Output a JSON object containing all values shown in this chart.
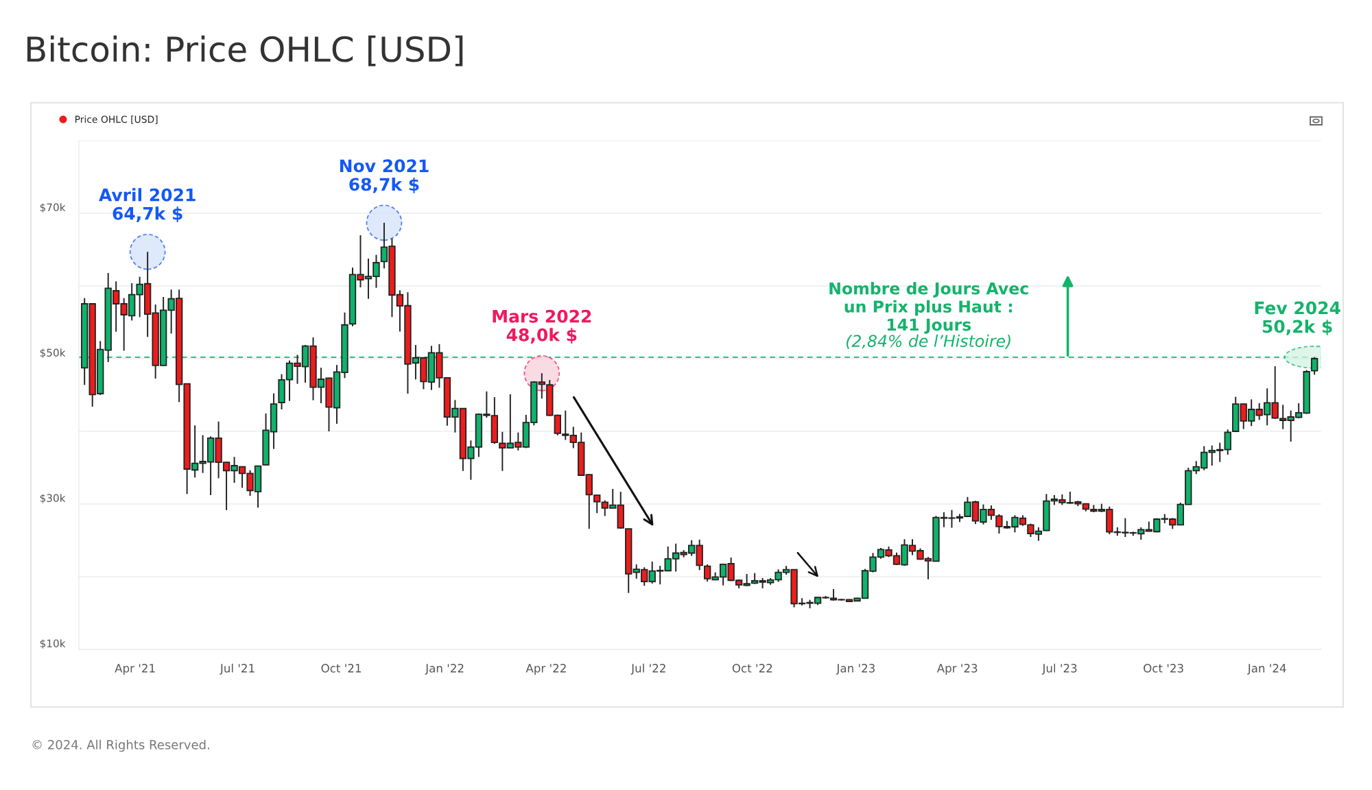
{
  "chart_data": {
    "type": "candlestick",
    "title": "Bitcoin: Price OHLC [USD]",
    "x": [
      "2021-02-15",
      "2021-02-22",
      "2021-03-01",
      "2021-03-08",
      "2021-03-15",
      "2021-03-22",
      "2021-03-29",
      "2021-04-05",
      "2021-04-12",
      "2021-04-19",
      "2021-04-26",
      "2021-05-03",
      "2021-05-10",
      "2021-05-17",
      "2021-05-24",
      "2021-05-31",
      "2021-06-07",
      "2021-06-14",
      "2021-06-21",
      "2021-06-28",
      "2021-07-05",
      "2021-07-12",
      "2021-07-19",
      "2021-07-26",
      "2021-08-02",
      "2021-08-09",
      "2021-08-16",
      "2021-08-23",
      "2021-08-30",
      "2021-09-06",
      "2021-09-13",
      "2021-09-20",
      "2021-09-27",
      "2021-10-04",
      "2021-10-11",
      "2021-10-18",
      "2021-10-25",
      "2021-11-01",
      "2021-11-08",
      "2021-11-15",
      "2021-11-22",
      "2021-11-29",
      "2021-12-06",
      "2021-12-13",
      "2021-12-20",
      "2021-12-27",
      "2022-01-03",
      "2022-01-10",
      "2022-01-17",
      "2022-01-24",
      "2022-01-31",
      "2022-02-07",
      "2022-02-14",
      "2022-02-21",
      "2022-02-28",
      "2022-03-07",
      "2022-03-14",
      "2022-03-21",
      "2022-03-28",
      "2022-04-04",
      "2022-04-11",
      "2022-04-18",
      "2022-04-25",
      "2022-05-02",
      "2022-05-09",
      "2022-05-16",
      "2022-05-23",
      "2022-05-30",
      "2022-06-06",
      "2022-06-13",
      "2022-06-20",
      "2022-06-27",
      "2022-07-04",
      "2022-07-11",
      "2022-07-18",
      "2022-07-25",
      "2022-08-01",
      "2022-08-08",
      "2022-08-15",
      "2022-08-22",
      "2022-08-29",
      "2022-09-05",
      "2022-09-12",
      "2022-09-19",
      "2022-09-26",
      "2022-10-03",
      "2022-10-10",
      "2022-10-17",
      "2022-10-24",
      "2022-10-31",
      "2022-11-07",
      "2022-11-14",
      "2022-11-21",
      "2022-11-28",
      "2022-12-05",
      "2022-12-12",
      "2022-12-19",
      "2022-12-26",
      "2023-01-02",
      "2023-01-09",
      "2023-01-16",
      "2023-01-23",
      "2023-01-30",
      "2023-02-06",
      "2023-02-13",
      "2023-02-20",
      "2023-02-27",
      "2023-03-06",
      "2023-03-13",
      "2023-03-20",
      "2023-03-27",
      "2023-04-03",
      "2023-04-10",
      "2023-04-17",
      "2023-04-24",
      "2023-05-01",
      "2023-05-08",
      "2023-05-15",
      "2023-05-22",
      "2023-05-29",
      "2023-06-05",
      "2023-06-12",
      "2023-06-19",
      "2023-06-26",
      "2023-07-03",
      "2023-07-10",
      "2023-07-17",
      "2023-07-24",
      "2023-07-31",
      "2023-08-07",
      "2023-08-14",
      "2023-08-21",
      "2023-08-28",
      "2023-09-04",
      "2023-09-11",
      "2023-09-18",
      "2023-09-25",
      "2023-10-02",
      "2023-10-09",
      "2023-10-16",
      "2023-10-23",
      "2023-10-30",
      "2023-11-06",
      "2023-11-13",
      "2023-11-20",
      "2023-11-27",
      "2023-12-04",
      "2023-12-11",
      "2023-12-18",
      "2023-12-25",
      "2024-01-01",
      "2024-01-08",
      "2024-01-15",
      "2024-01-22",
      "2024-01-29",
      "2024-02-05",
      "2024-02-12"
    ],
    "series": [
      {
        "name": "Price OHLC [USD]",
        "color": "#ee1c1c",
        "colors": [
          "#10b26c",
          "#ee1c1c",
          "#10b26c",
          "#10b26c",
          "#ee1c1c",
          "#ee1c1c",
          "#10b26c",
          "#10b26c",
          "#ee1c1c",
          "#ee1c1c",
          "#10b26c",
          "#10b26c",
          "#ee1c1c",
          "#ee1c1c",
          "#10b26c",
          "#10b26c",
          "#10b26c",
          "#ee1c1c",
          "#ee1c1c",
          "#10b26c",
          "#ee1c1c",
          "#ee1c1c",
          "#10b26c",
          "#10b26c",
          "#10b26c",
          "#10b26c",
          "#10b26c",
          "#ee1c1c",
          "#10b26c",
          "#ee1c1c",
          "#10b26c",
          "#ee1c1c",
          "#10b26c",
          "#10b26c",
          "#10b26c",
          "#ee1c1c",
          "#10b26c",
          "#10b26c",
          "#10b26c",
          "#ee1c1c",
          "#ee1c1c",
          "#ee1c1c",
          "#10b26c",
          "#ee1c1c",
          "#10b26c",
          "#ee1c1c",
          "#ee1c1c",
          "#10b26c",
          "#ee1c1c",
          "#10b26c",
          "#10b26c",
          "#ee1c1c",
          "#ee1c1c",
          "#ee1c1c",
          "#10b26c",
          "#ee1c1c",
          "#10b26c",
          "#10b26c",
          "#ee1c1c",
          "#ee1c1c",
          "#ee1c1c",
          "#ee1c1c",
          "#ee1c1c",
          "#ee1c1c",
          "#ee1c1c",
          "#ee1c1c",
          "#ee1c1c",
          "#10b26c",
          "#ee1c1c",
          "#ee1c1c",
          "#10b26c",
          "#ee1c1c",
          "#10b26c",
          "#10b26c",
          "#10b26c",
          "#10b26c",
          "#ee1c1c",
          "#10b26c",
          "#ee1c1c",
          "#ee1c1c",
          "#10b26c",
          "#10b26c",
          "#ee1c1c",
          "#ee1c1c",
          "#10b26c",
          "#10b26c",
          "#ee1c1c",
          "#10b26c",
          "#10b26c",
          "#10b26c",
          "#ee1c1c",
          "#10b26c",
          "#10b26c",
          "#10b26c",
          "#ee1c1c",
          "#ee1c1c",
          "#10b26c",
          "#ee1c1c",
          "#10b26c",
          "#10b26c",
          "#10b26c",
          "#10b26c",
          "#ee1c1c",
          "#ee1c1c",
          "#10b26c",
          "#ee1c1c",
          "#ee1c1c",
          "#ee1c1c",
          "#10b26c",
          "#ee1c1c",
          "#10b26c",
          "#10b26c",
          "#10b26c",
          "#ee1c1c",
          "#10b26c",
          "#ee1c1c",
          "#ee1c1c",
          "#ee1c1c",
          "#10b26c",
          "#ee1c1c",
          "#ee1c1c",
          "#10b26c",
          "#10b26c",
          "#10b26c",
          "#ee1c1c",
          "#ee1c1c",
          "#ee1c1c",
          "#ee1c1c",
          "#ee1c1c",
          "#10b26c",
          "#ee1c1c",
          "#ee1c1c",
          "#ee1c1c",
          "#ee1c1c",
          "#10b26c",
          "#ee1c1c",
          "#10b26c",
          "#10b26c",
          "#ee1c1c",
          "#10b26c",
          "#10b26c",
          "#10b26c",
          "#10b26c",
          "#10b26c",
          "#10b26c",
          "#10b26c",
          "#10b26c",
          "#ee1c1c",
          "#10b26c",
          "#ee1c1c",
          "#10b26c",
          "#ee1c1c",
          "#ee1c1c",
          "#10b26c",
          "#10b26c",
          "#10b26c",
          "#10b26c"
        ],
        "ohlc": [
          [
            48740,
            58330,
            46380,
            57550
          ],
          [
            57550,
            57600,
            43400,
            45060
          ],
          [
            45190,
            52420,
            45000,
            51260
          ],
          [
            51160,
            61790,
            49530,
            59690
          ],
          [
            59340,
            60630,
            53710,
            57550
          ],
          [
            57550,
            58330,
            51100,
            56040
          ],
          [
            55910,
            60380,
            55250,
            58810
          ],
          [
            58810,
            61260,
            55720,
            60220
          ],
          [
            60310,
            64700,
            52990,
            56130
          ],
          [
            56290,
            57450,
            47260,
            49060
          ],
          [
            49060,
            58490,
            49000,
            56670
          ],
          [
            56670,
            59500,
            53460,
            58240
          ],
          [
            58300,
            59500,
            44030,
            46450
          ],
          [
            46540,
            46600,
            31380,
            34810
          ],
          [
            34690,
            40820,
            33650,
            35600
          ],
          [
            35600,
            39470,
            34280,
            35850
          ],
          [
            35790,
            39310,
            31230,
            39060
          ],
          [
            39060,
            41350,
            33550,
            35750
          ],
          [
            35750,
            35800,
            29150,
            34590
          ],
          [
            34590,
            36480,
            32920,
            35280
          ],
          [
            35130,
            35200,
            32230,
            34210
          ],
          [
            34210,
            34650,
            31130,
            31860
          ],
          [
            31700,
            35300,
            29500,
            35220
          ],
          [
            35380,
            42450,
            35300,
            40160
          ],
          [
            39940,
            45220,
            37580,
            43770
          ],
          [
            43960,
            47860,
            43020,
            47080
          ],
          [
            47110,
            49750,
            44180,
            49370
          ],
          [
            49370,
            50530,
            46540,
            48960
          ],
          [
            48900,
            51890,
            46700,
            51730
          ],
          [
            51730,
            52920,
            44280,
            46070
          ],
          [
            46070,
            48740,
            43870,
            47170
          ],
          [
            47330,
            47400,
            40000,
            43330
          ],
          [
            43240,
            49120,
            41040,
            48180
          ],
          [
            48110,
            56350,
            47330,
            54650
          ],
          [
            54780,
            62520,
            54470,
            61570
          ],
          [
            61570,
            66980,
            59810,
            60850
          ],
          [
            61010,
            63770,
            58240,
            61320
          ],
          [
            61320,
            64280,
            59750,
            63210
          ],
          [
            63360,
            68700,
            62420,
            65350
          ],
          [
            65470,
            66510,
            55720,
            58750
          ],
          [
            58820,
            59410,
            53730,
            57250
          ],
          [
            57290,
            59140,
            45180,
            49250
          ],
          [
            49410,
            51880,
            47140,
            50120
          ],
          [
            50120,
            50200,
            45800,
            46860
          ],
          [
            46780,
            51760,
            45690,
            50820
          ],
          [
            50820,
            52000,
            46000,
            47370
          ],
          [
            47370,
            47400,
            40780,
            41960
          ],
          [
            41960,
            44310,
            39840,
            43140
          ],
          [
            43140,
            43200,
            34550,
            36270
          ],
          [
            36270,
            38750,
            33330,
            37840
          ],
          [
            37840,
            42470,
            36470,
            42350
          ],
          [
            42350,
            45490,
            41880,
            42200
          ],
          [
            42160,
            44710,
            38270,
            38470
          ],
          [
            38350,
            39920,
            34550,
            37730
          ],
          [
            37730,
            45100,
            37650,
            38350
          ],
          [
            38470,
            39840,
            37370,
            37840
          ],
          [
            37840,
            42270,
            37700,
            41220
          ],
          [
            41220,
            46900,
            40820,
            46780
          ],
          [
            46780,
            48000,
            44510,
            46470
          ],
          [
            46390,
            47060,
            42100,
            42200
          ],
          [
            42200,
            42300,
            39450,
            39730
          ],
          [
            39610,
            42860,
            38820,
            39450
          ],
          [
            39450,
            40630,
            37690,
            38470
          ],
          [
            38470,
            39840,
            33900,
            33960
          ],
          [
            34040,
            34100,
            26590,
            31290
          ],
          [
            31220,
            31300,
            28750,
            30310
          ],
          [
            30240,
            30510,
            28350,
            29450
          ],
          [
            29450,
            32080,
            29400,
            29840
          ],
          [
            29840,
            31690,
            26600,
            26710
          ],
          [
            26590,
            26600,
            17760,
            20390
          ],
          [
            20590,
            21690,
            19730,
            21020
          ],
          [
            20980,
            21290,
            18750,
            19330
          ],
          [
            19330,
            22080,
            19060,
            20780
          ],
          [
            20780,
            21490,
            18940,
            20860
          ],
          [
            20820,
            24160,
            20800,
            22470
          ],
          [
            22470,
            24550,
            20710,
            23250
          ],
          [
            23330,
            23650,
            22670,
            23060
          ],
          [
            23250,
            25020,
            22860,
            24310
          ],
          [
            24310,
            25100,
            20900,
            21570
          ],
          [
            21450,
            21690,
            19340,
            19720
          ],
          [
            19590,
            20600,
            19500,
            19970
          ],
          [
            19970,
            21800,
            18810,
            21700
          ],
          [
            21790,
            22640,
            19400,
            19500
          ],
          [
            19500,
            19600,
            18400,
            18870
          ],
          [
            18810,
            20380,
            18700,
            19030
          ],
          [
            19120,
            20500,
            19000,
            19430
          ],
          [
            19430,
            19810,
            18400,
            19250
          ],
          [
            19180,
            19810,
            18900,
            19560
          ],
          [
            19590,
            21010,
            19300,
            20600
          ],
          [
            20600,
            21480,
            20280,
            20970
          ],
          [
            20970,
            21000,
            15790,
            16290
          ],
          [
            16290,
            17040,
            16040,
            16350
          ],
          [
            16350,
            16820,
            15660,
            16450
          ],
          [
            16350,
            17200,
            16100,
            17140
          ],
          [
            17140,
            17350,
            16980,
            17100
          ],
          [
            17040,
            18300,
            16700,
            16820
          ],
          [
            16820,
            16950,
            16700,
            16850
          ],
          [
            16850,
            16900,
            16550,
            16600
          ],
          [
            16670,
            17100,
            16600,
            17040
          ],
          [
            17040,
            21070,
            16980,
            20820
          ],
          [
            20760,
            23270,
            20600,
            22700
          ],
          [
            22700,
            23960,
            22480,
            23740
          ],
          [
            23680,
            24150,
            22700,
            22890
          ],
          [
            22890,
            23330,
            21600,
            21700
          ],
          [
            21640,
            25160,
            21500,
            24370
          ],
          [
            24310,
            25160,
            22960,
            23520
          ],
          [
            23580,
            23900,
            22330,
            22420
          ],
          [
            22480,
            22700,
            19650,
            22170
          ],
          [
            22140,
            28360,
            22100,
            28140
          ],
          [
            28140,
            28870,
            26820,
            28050
          ],
          [
            28050,
            29180,
            26730,
            28080
          ],
          [
            28080,
            28620,
            27520,
            28240
          ],
          [
            28300,
            30970,
            28200,
            30250
          ],
          [
            30280,
            30440,
            27260,
            27670
          ],
          [
            27520,
            29940,
            27200,
            29250
          ],
          [
            29250,
            29810,
            27830,
            28460
          ],
          [
            28360,
            28600,
            25940,
            26890
          ],
          [
            26890,
            27670,
            26600,
            26730
          ],
          [
            26860,
            28460,
            26100,
            28140
          ],
          [
            28050,
            28460,
            27000,
            27200
          ],
          [
            27140,
            27300,
            25470,
            25940
          ],
          [
            25850,
            26790,
            24940,
            26260
          ],
          [
            26350,
            31380,
            26300,
            30410
          ],
          [
            30440,
            31230,
            29870,
            30660
          ],
          [
            30570,
            31320,
            29870,
            30190
          ],
          [
            30190,
            31700,
            30030,
            30130
          ],
          [
            30280,
            30440,
            29720,
            30030
          ],
          [
            30030,
            30100,
            29000,
            29310
          ],
          [
            29250,
            29870,
            28870,
            29030
          ],
          [
            29030,
            30030,
            28900,
            29250
          ],
          [
            29250,
            29650,
            25850,
            26160
          ],
          [
            26160,
            26790,
            25630,
            26100
          ],
          [
            26100,
            28050,
            25470,
            26040
          ],
          [
            26040,
            26200,
            25630,
            26010
          ],
          [
            25910,
            26790,
            25090,
            26480
          ],
          [
            26480,
            27580,
            26200,
            26260
          ],
          [
            26200,
            28050,
            26100,
            27920
          ],
          [
            27920,
            28620,
            27360,
            27980
          ],
          [
            27920,
            28080,
            26570,
            27140
          ],
          [
            27140,
            30190,
            27100,
            29940
          ],
          [
            29940,
            35000,
            29900,
            34590
          ],
          [
            34590,
            35910,
            34120,
            35130
          ],
          [
            34970,
            37960,
            34650,
            37110
          ],
          [
            37110,
            38050,
            35280,
            37360
          ],
          [
            37360,
            38430,
            35790,
            37480
          ],
          [
            37480,
            40250,
            36790,
            39870
          ],
          [
            40000,
            44750,
            39900,
            43770
          ],
          [
            43770,
            43800,
            40310,
            41420
          ],
          [
            41420,
            44400,
            40720,
            43020
          ],
          [
            43020,
            43870,
            41570,
            42200
          ],
          [
            42300,
            45910,
            40820,
            43930
          ],
          [
            43930,
            48960,
            41700,
            41820
          ],
          [
            41760,
            43650,
            40310,
            41510
          ],
          [
            41510,
            42860,
            38580,
            41980
          ],
          [
            41920,
            43870,
            41800,
            42550
          ],
          [
            42520,
            48430,
            42400,
            48210
          ],
          [
            48330,
            50200,
            47800,
            50000
          ]
        ]
      }
    ],
    "xlim": [
      "2021-02-10",
      "2024-02-18"
    ],
    "xticks": [
      {
        "value": "2021-04-01",
        "label": "Apr '21"
      },
      {
        "value": "2021-07-01",
        "label": "Jul '21"
      },
      {
        "value": "2021-10-01",
        "label": "Oct '21"
      },
      {
        "value": "2022-01-01",
        "label": "Jan '22"
      },
      {
        "value": "2022-04-01",
        "label": "Apr '22"
      },
      {
        "value": "2022-07-01",
        "label": "Jul '22"
      },
      {
        "value": "2022-10-01",
        "label": "Oct '22"
      },
      {
        "value": "2023-01-01",
        "label": "Jan '23"
      },
      {
        "value": "2023-04-01",
        "label": "Apr '23"
      },
      {
        "value": "2023-07-01",
        "label": "Jul '23"
      },
      {
        "value": "2023-10-01",
        "label": "Oct '23"
      },
      {
        "value": "2024-01-01",
        "label": "Jan '24"
      }
    ],
    "ylim": [
      10000,
      80000
    ],
    "yticks": [
      {
        "value": 10000,
        "label": "$10k"
      },
      {
        "value": 20000,
        "label": null
      },
      {
        "value": 30000,
        "label": "$30k"
      },
      {
        "value": 40000,
        "label": null
      },
      {
        "value": 50000,
        "label": "$50k"
      },
      {
        "value": 60000,
        "label": null
      },
      {
        "value": 70000,
        "label": "$70k"
      },
      {
        "value": 80000,
        "label": null
      }
    ],
    "grid": "y",
    "legend": "top left",
    "ref_lines": [
      {
        "axis": "y",
        "value": 50200,
        "color": "#17b26d",
        "line_style": "dashed"
      }
    ],
    "annotations": [
      {
        "text": "Avril 2021\n64,7k $",
        "x": "2021-04-12",
        "y": 64700
      },
      {
        "text": "Nov 2021\n68,7k $",
        "x": "2021-11-08",
        "y": 68700
      },
      {
        "text": "Mars 2022\n48,0k $",
        "x": "2022-03-28",
        "y": 48000
      },
      {
        "text": "Fev 2024\n50,2k $",
        "x": "2024-02-12",
        "y": 50200
      },
      "Nombre de Jours Avec\nun Prix plus Haut :\n141 Jours",
      "(2,84% de l’Histoire)",
      "© 2024. All Rights Reserved."
    ]
  }
}
